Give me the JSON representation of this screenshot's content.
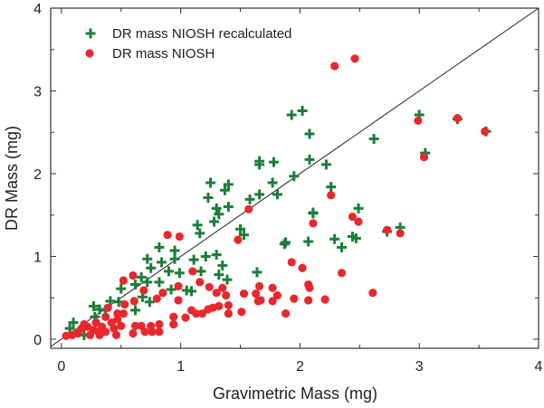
{
  "chart_data": {
    "type": "scatter",
    "xlabel": "Gravimetric Mass (mg)",
    "ylabel": "DR Mass (mg)",
    "xlim": [
      -0.09,
      4
    ],
    "ylim": [
      -0.11,
      4
    ],
    "xticks": [
      "0",
      "1",
      "2",
      "3",
      "4"
    ],
    "yticks": [
      "0",
      "1",
      "2",
      "3",
      "4"
    ],
    "grid": false,
    "legend_position": "top-left",
    "reference_line": "y = x",
    "series": [
      {
        "name": "DR mass NIOSH recalculated",
        "marker": "plus",
        "color": "#1b7f3a",
        "points": [
          [
            1.93,
            2.71
          ],
          [
            2.02,
            2.76
          ],
          [
            2.08,
            2.48
          ],
          [
            2.08,
            2.17
          ],
          [
            1.95,
            1.97
          ],
          [
            1.66,
            2.11
          ],
          [
            1.66,
            2.15
          ],
          [
            1.78,
            2.14
          ],
          [
            1.77,
            1.89
          ],
          [
            1.81,
            1.75
          ],
          [
            1.66,
            1.75
          ],
          [
            1.58,
            1.69
          ],
          [
            1.25,
            1.89
          ],
          [
            1.23,
            1.71
          ],
          [
            1.4,
            1.87
          ],
          [
            1.37,
            1.8
          ],
          [
            1.4,
            1.6
          ],
          [
            1.3,
            1.58
          ],
          [
            1.32,
            1.51
          ],
          [
            1.28,
            1.42
          ],
          [
            1.14,
            1.38
          ],
          [
            1.16,
            1.28
          ],
          [
            1.5,
            1.33
          ],
          [
            1.53,
            1.26
          ],
          [
            1.88,
            1.17
          ],
          [
            2.07,
            1.18
          ],
          [
            2.11,
            1.53
          ],
          [
            0.95,
            1.07
          ],
          [
            0.82,
            1.11
          ],
          [
            0.72,
            0.97
          ],
          [
            0.75,
            0.86
          ],
          [
            0.84,
            0.93
          ],
          [
            0.95,
            0.97
          ],
          [
            0.9,
            0.82
          ],
          [
            0.99,
            0.8
          ],
          [
            1.11,
            0.96
          ],
          [
            1.21,
            1.0
          ],
          [
            1.3,
            1.02
          ],
          [
            1.35,
            0.89
          ],
          [
            1.32,
            0.78
          ],
          [
            1.39,
            0.72
          ],
          [
            1.17,
            0.82
          ],
          [
            1.64,
            0.81
          ],
          [
            0.5,
            0.61
          ],
          [
            0.62,
            0.66
          ],
          [
            0.67,
            0.75
          ],
          [
            0.72,
            0.69
          ],
          [
            0.82,
            0.69
          ],
          [
            0.92,
            0.6
          ],
          [
            1.05,
            0.59
          ],
          [
            1.09,
            0.58
          ],
          [
            0.68,
            0.51
          ],
          [
            0.74,
            0.45
          ],
          [
            0.41,
            0.46
          ],
          [
            0.48,
            0.45
          ],
          [
            0.27,
            0.4
          ],
          [
            0.32,
            0.36
          ],
          [
            0.37,
            0.35
          ],
          [
            0.62,
            0.35
          ],
          [
            0.28,
            0.27
          ],
          [
            0.1,
            0.2
          ],
          [
            0.07,
            0.13
          ],
          [
            0.19,
            0.05
          ],
          [
            2.62,
            2.42
          ],
          [
            2.22,
            2.11
          ],
          [
            2.26,
            1.84
          ],
          [
            2.11,
            1.52
          ],
          [
            2.49,
            1.58
          ],
          [
            2.44,
            1.24
          ],
          [
            2.47,
            1.22
          ],
          [
            2.29,
            1.21
          ],
          [
            2.35,
            1.11
          ],
          [
            2.73,
            1.3
          ],
          [
            2.84,
            1.35
          ],
          [
            3.0,
            2.71
          ],
          [
            3.32,
            2.66
          ],
          [
            3.56,
            2.51
          ],
          [
            3.05,
            2.25
          ],
          [
            1.87,
            1.15
          ]
        ]
      },
      {
        "name": "DR mass NIOSH",
        "marker": "circle",
        "color": "#e8282d",
        "points": [
          [
            1.57,
            1.57
          ],
          [
            1.48,
            1.2
          ],
          [
            0.89,
            1.26
          ],
          [
            0.99,
            1.24
          ],
          [
            1.1,
            0.82
          ],
          [
            0.6,
            0.77
          ],
          [
            0.52,
            0.71
          ],
          [
            1.16,
            0.69
          ],
          [
            1.24,
            0.63
          ],
          [
            0.98,
            0.64
          ],
          [
            0.85,
            0.56
          ],
          [
            0.69,
            0.59
          ],
          [
            0.8,
            0.49
          ],
          [
            1.3,
            0.56
          ],
          [
            1.35,
            0.62
          ],
          [
            1.38,
            0.53
          ],
          [
            1.53,
            0.55
          ],
          [
            1.66,
            0.64
          ],
          [
            1.63,
            0.55
          ],
          [
            1.77,
            0.62
          ],
          [
            1.81,
            0.53
          ],
          [
            1.77,
            0.46
          ],
          [
            1.67,
            0.47
          ],
          [
            1.65,
            0.46
          ],
          [
            1.95,
            0.49
          ],
          [
            2.07,
            0.47
          ],
          [
            2.07,
            0.66
          ],
          [
            2.08,
            0.62
          ],
          [
            1.93,
            0.93
          ],
          [
            2.02,
            0.86
          ],
          [
            2.11,
            1.4
          ],
          [
            1.88,
            0.31
          ],
          [
            0.98,
            0.47
          ],
          [
            0.61,
            0.46
          ],
          [
            0.53,
            0.42
          ],
          [
            1.51,
            0.33
          ],
          [
            1.4,
            0.41
          ],
          [
            1.4,
            0.31
          ],
          [
            1.32,
            0.4
          ],
          [
            1.27,
            0.38
          ],
          [
            1.23,
            0.36
          ],
          [
            1.18,
            0.31
          ],
          [
            1.13,
            0.31
          ],
          [
            1.09,
            0.35
          ],
          [
            1.04,
            0.26
          ],
          [
            0.94,
            0.27
          ],
          [
            0.94,
            0.18
          ],
          [
            0.82,
            0.18
          ],
          [
            0.75,
            0.16
          ],
          [
            0.67,
            0.16
          ],
          [
            0.62,
            0.16
          ],
          [
            0.6,
            0.07
          ],
          [
            0.7,
            0.09
          ],
          [
            0.76,
            0.09
          ],
          [
            0.82,
            0.09
          ],
          [
            0.47,
            0.31
          ],
          [
            0.52,
            0.31
          ],
          [
            0.47,
            0.24
          ],
          [
            0.5,
            0.16
          ],
          [
            0.39,
            0.38
          ],
          [
            0.37,
            0.27
          ],
          [
            0.42,
            0.2
          ],
          [
            0.34,
            0.15
          ],
          [
            0.29,
            0.2
          ],
          [
            0.27,
            0.11
          ],
          [
            0.24,
            0.05
          ],
          [
            0.22,
            0.15
          ],
          [
            0.17,
            0.13
          ],
          [
            0.14,
            0.07
          ],
          [
            0.09,
            0.05
          ],
          [
            0.04,
            0.04
          ],
          [
            0.37,
            0.09
          ],
          [
            0.46,
            0.05
          ],
          [
            0.32,
            0.05
          ],
          [
            0.19,
            0.18
          ],
          [
            0.44,
            0.13
          ],
          [
            0.31,
            0.09
          ],
          [
            2.29,
            3.3
          ],
          [
            2.46,
            3.39
          ],
          [
            2.26,
            1.74
          ],
          [
            2.44,
            1.48
          ],
          [
            2.49,
            1.42
          ],
          [
            2.73,
            1.32
          ],
          [
            2.84,
            1.28
          ],
          [
            2.99,
            2.64
          ],
          [
            3.32,
            2.67
          ],
          [
            3.55,
            2.51
          ],
          [
            3.04,
            2.2
          ],
          [
            2.35,
            0.8
          ],
          [
            2.21,
            0.48
          ],
          [
            2.61,
            0.56
          ]
        ]
      }
    ]
  }
}
